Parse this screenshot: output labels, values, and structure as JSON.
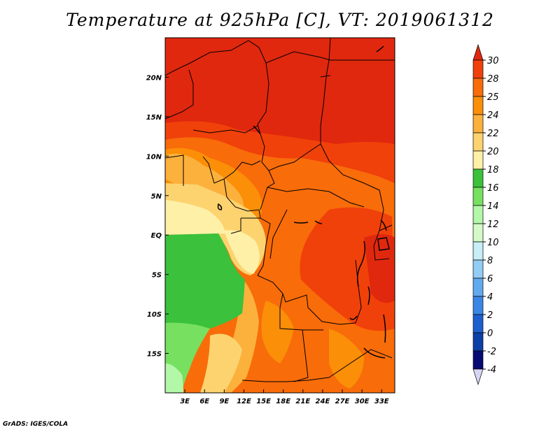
{
  "title": "Temperature at 925hPa [C], VT: 2019061312",
  "credit": "GrADS: IGES/COLA",
  "map": {
    "lon_range": [
      0,
      35
    ],
    "lat_range": [
      -20,
      25
    ],
    "x_ticks": [
      {
        "lon": 3,
        "label": "3E"
      },
      {
        "lon": 6,
        "label": "6E"
      },
      {
        "lon": 9,
        "label": "9E"
      },
      {
        "lon": 12,
        "label": "12E"
      },
      {
        "lon": 15,
        "label": "15E"
      },
      {
        "lon": 18,
        "label": "18E"
      },
      {
        "lon": 21,
        "label": "21E"
      },
      {
        "lon": 24,
        "label": "24E"
      },
      {
        "lon": 27,
        "label": "27E"
      },
      {
        "lon": 30,
        "label": "30E"
      },
      {
        "lon": 33,
        "label": "33E"
      }
    ],
    "y_ticks": [
      {
        "lat": 20,
        "label": "20N"
      },
      {
        "lat": 15,
        "label": "15N"
      },
      {
        "lat": 10,
        "label": "10N"
      },
      {
        "lat": 5,
        "label": "5N"
      },
      {
        "lat": 0,
        "label": "EQ"
      },
      {
        "lat": -5,
        "label": "5S"
      },
      {
        "lat": -10,
        "label": "10S"
      },
      {
        "lat": -15,
        "label": "15S"
      }
    ]
  },
  "colorbar": {
    "levels": [
      {
        "label": "30",
        "color": "#e0280e"
      },
      {
        "label": "28",
        "color": "#f0410a"
      },
      {
        "label": "25",
        "color": "#f86c0a"
      },
      {
        "label": "24",
        "color": "#fb8f08"
      },
      {
        "label": "22",
        "color": "#fcb13c"
      },
      {
        "label": "20",
        "color": "#fcd36f"
      },
      {
        "label": "18",
        "color": "#fff0a8"
      },
      {
        "label": "16",
        "color": "#3bc13b"
      },
      {
        "label": "14",
        "color": "#77e060"
      },
      {
        "label": "12",
        "color": "#b3f7a8"
      },
      {
        "label": "10",
        "color": "#d4fac8"
      },
      {
        "label": "8",
        "color": "#c8eef8"
      },
      {
        "label": "6",
        "color": "#93cdf5"
      },
      {
        "label": "4",
        "color": "#62aaee"
      },
      {
        "label": "2",
        "color": "#3a86e6"
      },
      {
        "label": "0",
        "color": "#1e5fd0"
      },
      {
        "label": "-2",
        "color": "#0d3fa8"
      },
      {
        "label": "-4",
        "color": "#060a72"
      }
    ],
    "below_color": "#d6d6f4"
  }
}
